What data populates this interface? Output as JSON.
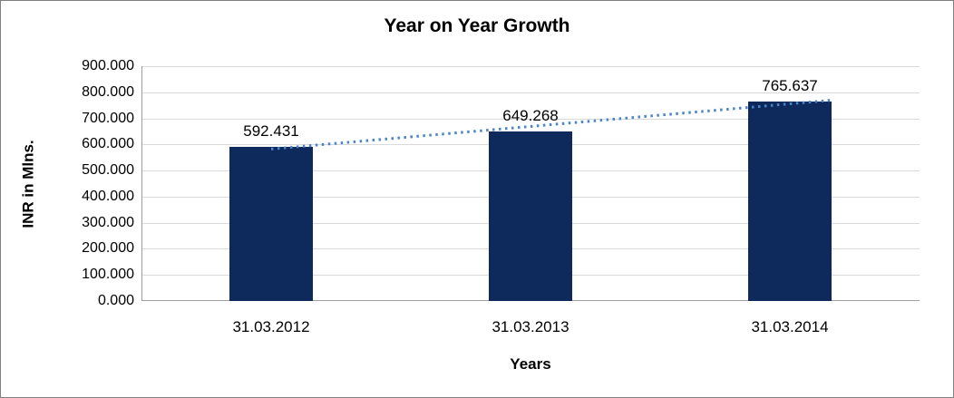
{
  "chart_data": {
    "type": "bar",
    "title": "Year on Year Growth",
    "xlabel": "Years",
    "ylabel": "INR in Mlns.",
    "categories": [
      "31.03.2012",
      "31.03.2013",
      "31.03.2014"
    ],
    "values": [
      592.431,
      649.268,
      765.637
    ],
    "value_labels": [
      "592.431",
      "649.268",
      "765.637"
    ],
    "ylim": [
      0,
      900
    ],
    "y_tick_interval": 100,
    "y_tick_labels": [
      "0.000",
      "100.000",
      "200.000",
      "300.000",
      "400.000",
      "500.000",
      "600.000",
      "700.000",
      "800.000",
      "900.000"
    ],
    "grid": true,
    "legend": "none",
    "trendline": {
      "type": "linear",
      "style": "dotted"
    },
    "colors": {
      "bar": "#0E295C",
      "trendline": "#4A86C6",
      "gridline": "#D9D9D9",
      "axis_line": "#9E9E9E",
      "text": "#000000",
      "frame_border": "#7F7F7F",
      "background": "#FFFFFF"
    }
  }
}
